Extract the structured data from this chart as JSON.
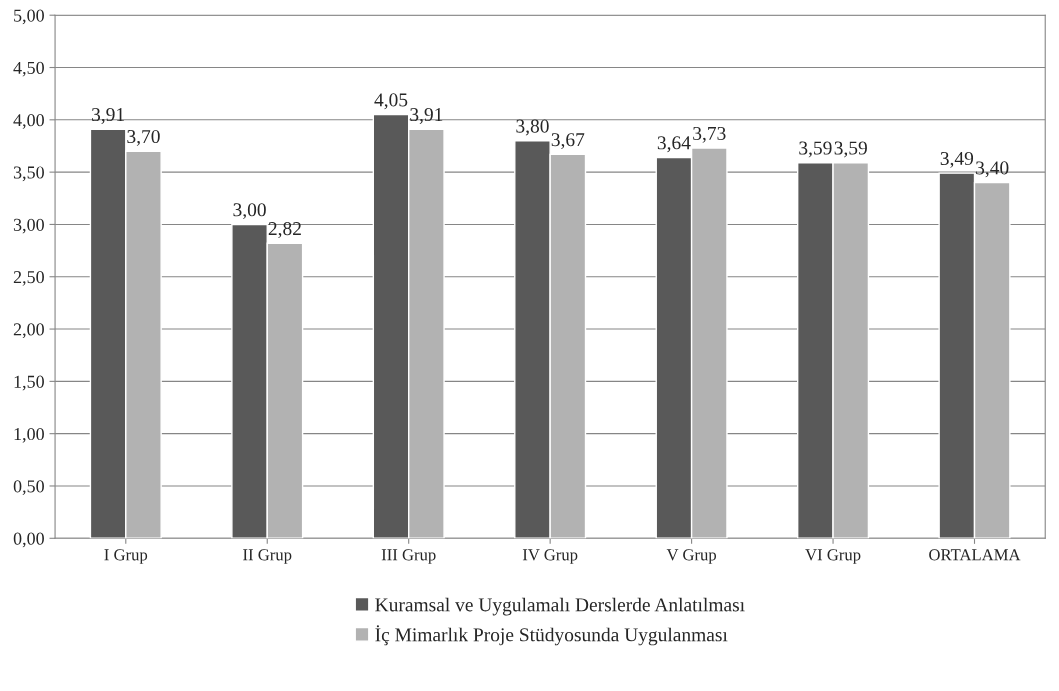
{
  "chart_data": {
    "type": "bar",
    "categories": [
      "I Grup",
      "II Grup",
      "III Grup",
      "IV Grup",
      "V Grup",
      "VI Grup",
      "ORTALAMA"
    ],
    "series": [
      {
        "name": "Kuramsal ve Uygulamalı Derslerde Anlatılması",
        "color": "#595959",
        "values": [
          3.91,
          3.0,
          4.05,
          3.8,
          3.64,
          3.59,
          3.49
        ],
        "value_labels": [
          "3,91",
          "3,00",
          "4,05",
          "3,80",
          "3,64",
          "3,59",
          "3,49"
        ]
      },
      {
        "name": "İç Mimarlık Proje Stüdyosunda Uygulanması",
        "color": "#b2b2b2",
        "values": [
          3.7,
          2.82,
          3.91,
          3.67,
          3.73,
          3.59,
          3.4
        ],
        "value_labels": [
          "3,70",
          "2,82",
          "3,91",
          "3,67",
          "3,73",
          "3,59",
          "3,40"
        ]
      }
    ],
    "ylim": [
      0,
      5
    ],
    "yticks": [
      {
        "value": 0,
        "label": "0,00"
      },
      {
        "value": 0.5,
        "label": "0,50"
      },
      {
        "value": 1,
        "label": "1,00"
      },
      {
        "value": 1.5,
        "label": "1,50"
      },
      {
        "value": 2,
        "label": "2,00"
      },
      {
        "value": 2.5,
        "label": "2,50"
      },
      {
        "value": 3,
        "label": "3,00"
      },
      {
        "value": 3.5,
        "label": "3,50"
      },
      {
        "value": 4,
        "label": "4,00"
      },
      {
        "value": 4.5,
        "label": "4,50"
      },
      {
        "value": 5,
        "label": "5,00"
      }
    ],
    "grid": "y",
    "legend": "bottom"
  }
}
